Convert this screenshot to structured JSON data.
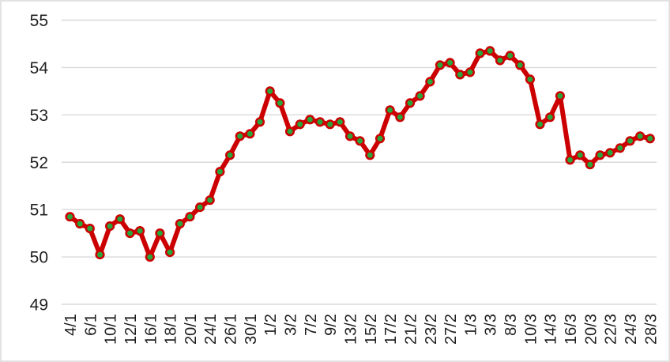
{
  "chart_data": {
    "type": "line",
    "title": "",
    "xlabel": "",
    "ylabel": "",
    "ylim": [
      49,
      55
    ],
    "yticks": [
      49,
      50,
      51,
      52,
      53,
      54,
      55
    ],
    "grid": true,
    "legend": "none",
    "x_labels": [
      "4/1",
      "",
      "6/1",
      "",
      "10/1",
      "",
      "12/1",
      "",
      "16/1",
      "",
      "18/1",
      "",
      "20/1",
      "",
      "24/1",
      "",
      "26/1",
      "",
      "30/1",
      "",
      "1/2",
      "",
      "3/2",
      "",
      "7/2",
      "",
      "9/2",
      "",
      "13/2",
      "",
      "15/2",
      "",
      "17/2",
      "",
      "21/2",
      "",
      "23/2",
      "",
      "27/2",
      "",
      "1/3",
      "",
      "3/3",
      "",
      "8/3",
      "",
      "10/3",
      "",
      "14/3",
      "",
      "16/3",
      "",
      "20/3",
      "",
      "22/3",
      "",
      "24/3",
      "",
      "28/3"
    ],
    "values": [
      50.85,
      50.7,
      50.6,
      50.05,
      50.65,
      50.8,
      50.5,
      50.55,
      50.0,
      50.5,
      50.1,
      50.7,
      50.85,
      51.05,
      51.2,
      51.8,
      52.15,
      52.55,
      52.6,
      52.85,
      53.5,
      53.25,
      52.65,
      52.8,
      52.9,
      52.85,
      52.8,
      52.85,
      52.55,
      52.45,
      52.15,
      52.5,
      53.1,
      52.95,
      53.25,
      53.4,
      53.7,
      54.05,
      54.1,
      53.85,
      53.9,
      54.3,
      54.35,
      54.15,
      54.25,
      54.05,
      53.75,
      52.8,
      52.95,
      53.4,
      52.05,
      52.15,
      51.95,
      52.15,
      52.2,
      52.3,
      52.45,
      52.55,
      52.5
    ],
    "line_color": "#CC0000",
    "marker_fill": "#28A53C",
    "marker_outline": "#CC0000",
    "gridline_color": "#D9D9D9",
    "frame_color": "#E2E2E2",
    "text_color": "#1F1F1F"
  }
}
